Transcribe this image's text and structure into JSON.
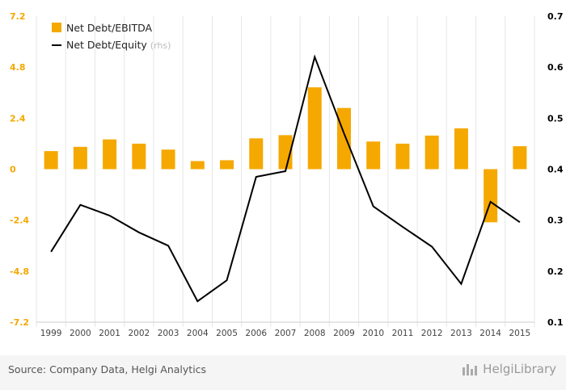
{
  "chart_data": {
    "type": "bar+line",
    "categories": [
      "1999",
      "2000",
      "2001",
      "2002",
      "2003",
      "2004",
      "2005",
      "2006",
      "2007",
      "2008",
      "2009",
      "2010",
      "2011",
      "2012",
      "2013",
      "2014",
      "2015"
    ],
    "series": [
      {
        "name": "Net Debt/EBITDA",
        "type": "bar",
        "axis": "left",
        "color": "#f5a800",
        "values": [
          0.85,
          1.05,
          1.4,
          1.2,
          0.92,
          0.38,
          0.42,
          1.45,
          1.6,
          3.85,
          2.88,
          1.3,
          1.2,
          1.58,
          1.92,
          -2.5,
          1.08
        ]
      },
      {
        "name": "Net Debt/Equity",
        "type": "line",
        "axis": "right",
        "color": "#000000",
        "values": [
          0.238,
          0.33,
          0.309,
          0.276,
          0.25,
          0.141,
          0.182,
          0.385,
          0.396,
          0.62,
          0.47,
          0.327,
          0.287,
          0.248,
          0.175,
          0.336,
          0.296
        ]
      }
    ],
    "legend": [
      {
        "label": "Net Debt/EBITDA",
        "suffix": ""
      },
      {
        "label": "Net Debt/Equity",
        "suffix": "(rhs)"
      }
    ],
    "left_axis": {
      "ylim": [
        -7.2,
        7.2
      ],
      "ticks": [
        "7.2",
        "4.8",
        "2.4",
        "0",
        "-2.4",
        "-4.8",
        "-7.2"
      ],
      "tick_values": [
        7.2,
        4.8,
        2.4,
        0,
        -2.4,
        -4.8,
        -7.2
      ],
      "color": "#f5a800"
    },
    "right_axis": {
      "ylim": [
        0.1,
        0.7
      ],
      "ticks": [
        "0.7",
        "0.6",
        "0.5",
        "0.4",
        "0.3",
        "0.2",
        "0.1"
      ],
      "tick_values": [
        0.7,
        0.6,
        0.5,
        0.4,
        0.3,
        0.2,
        0.1
      ],
      "color": "#000000"
    },
    "grid": "vertical",
    "legend_position": "top-left"
  },
  "footer": {
    "source": "Source: Company Data, Helgi Analytics",
    "brand": "HelgiLibrary",
    "brand_icon": "helgi-logo-icon"
  }
}
